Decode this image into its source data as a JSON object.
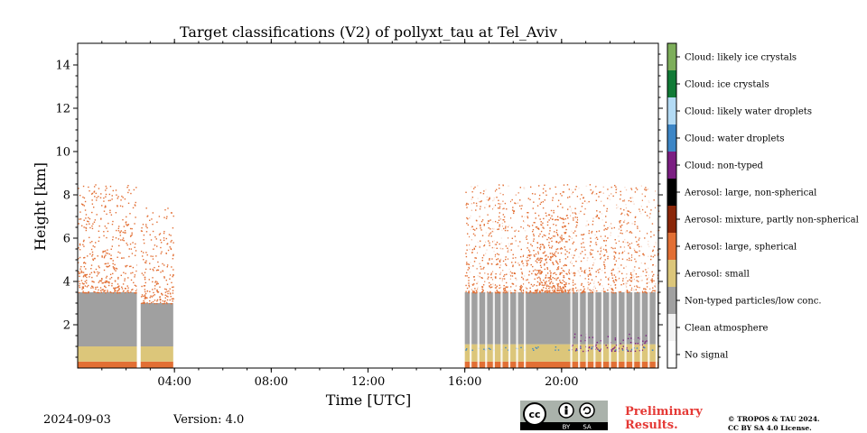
{
  "chart_data": {
    "type": "heatmap",
    "title": "Target classifications (V2) of pollyxt_tau at Tel_Aviv",
    "xlabel": "Time [UTC]",
    "ylabel": "Height [km]",
    "xlim_hours": [
      0,
      24
    ],
    "ylim_km": [
      0,
      15
    ],
    "x_ticks": [
      {
        "value": 4,
        "label": "04:00"
      },
      {
        "value": 8,
        "label": "08:00"
      },
      {
        "value": 12,
        "label": "12:00"
      },
      {
        "value": 16,
        "label": "16:00"
      },
      {
        "value": 20,
        "label": "20:00"
      }
    ],
    "y_ticks": [
      {
        "value": 2,
        "label": "2"
      },
      {
        "value": 4,
        "label": "4"
      },
      {
        "value": 6,
        "label": "6"
      },
      {
        "value": 8,
        "label": "8"
      },
      {
        "value": 10,
        "label": "10"
      },
      {
        "value": 12,
        "label": "12"
      },
      {
        "value": 14,
        "label": "14"
      }
    ],
    "classes": [
      {
        "id": 0,
        "name": "No signal",
        "color": "#ffffff"
      },
      {
        "id": 1,
        "name": "Clean atmosphere",
        "color": "#f2f2f2"
      },
      {
        "id": 2,
        "name": "Non-typed particles/low conc.",
        "color": "#a0a0a0"
      },
      {
        "id": 3,
        "name": "Aerosol: small",
        "color": "#dcc67a"
      },
      {
        "id": 4,
        "name": "Aerosol: large, spherical",
        "color": "#e26f34"
      },
      {
        "id": 5,
        "name": "Aerosol: mixture, partly non-spherical",
        "color": "#8a2608"
      },
      {
        "id": 6,
        "name": "Aerosol: large, non-spherical",
        "color": "#000000"
      },
      {
        "id": 7,
        "name": "Cloud: non-typed",
        "color": "#7b1e82"
      },
      {
        "id": 8,
        "name": "Cloud: water droplets",
        "color": "#3d86c6"
      },
      {
        "id": 9,
        "name": "Cloud: likely water droplets",
        "color": "#b3dbf5"
      },
      {
        "id": 10,
        "name": "Cloud: ice crystals",
        "color": "#117a36"
      },
      {
        "id": 11,
        "name": "Cloud: likely ice crystals",
        "color": "#7dae5a"
      }
    ],
    "segments": [
      {
        "t_start": 0.0,
        "t_end": 2.45,
        "class": 4,
        "h_bottom": 0.0,
        "h_top": 0.3
      },
      {
        "t_start": 0.0,
        "t_end": 2.45,
        "class": 3,
        "h_bottom": 0.3,
        "h_top": 1.0
      },
      {
        "t_start": 0.0,
        "t_end": 2.45,
        "class": 2,
        "h_bottom": 1.0,
        "h_top": 3.5
      },
      {
        "t_start": 0.0,
        "t_end": 2.45,
        "class": 4,
        "h_bottom": 3.5,
        "h_top": 8.5,
        "sparse": true
      },
      {
        "t_start": 2.6,
        "t_end": 3.95,
        "class": 4,
        "h_bottom": 0.0,
        "h_top": 0.3
      },
      {
        "t_start": 2.6,
        "t_end": 3.95,
        "class": 3,
        "h_bottom": 0.3,
        "h_top": 1.0
      },
      {
        "t_start": 2.6,
        "t_end": 3.95,
        "class": 2,
        "h_bottom": 1.0,
        "h_top": 3.0
      },
      {
        "t_start": 2.6,
        "t_end": 3.95,
        "class": 4,
        "h_bottom": 3.0,
        "h_top": 7.5,
        "sparse": true
      },
      {
        "t_start": 16.0,
        "t_end": 24.0,
        "class": 4,
        "h_bottom": 0.0,
        "h_top": 0.3
      },
      {
        "t_start": 16.0,
        "t_end": 24.0,
        "class": 3,
        "h_bottom": 0.3,
        "h_top": 1.1
      },
      {
        "t_start": 16.0,
        "t_end": 24.0,
        "class": 2,
        "h_bottom": 1.1,
        "h_top": 3.5
      },
      {
        "t_start": 16.0,
        "t_end": 24.0,
        "class": 4,
        "h_bottom": 3.5,
        "h_top": 8.5,
        "sparse": true
      },
      {
        "t_start": 18.8,
        "t_end": 20.2,
        "class": 4,
        "h_bottom": 3.5,
        "h_top": 7.0,
        "sparse": true
      },
      {
        "t_start": 20.3,
        "t_end": 23.5,
        "class": 7,
        "h_bottom": 0.8,
        "h_top": 1.6,
        "sparse": true
      },
      {
        "t_start": 16.0,
        "t_end": 24.0,
        "class": 8,
        "h_bottom": 0.85,
        "h_top": 1.0,
        "sparse": true
      }
    ]
  },
  "footer": {
    "date": "2024-09-03",
    "version": "Version: 4.0",
    "prelim_line1": "Preliminary",
    "prelim_line2": "Results.",
    "copyright_line1": "© TROPOS & TAU 2024.",
    "copyright_line2": "CC BY SA 4.0 License."
  },
  "license_badge": {
    "main": "cc",
    "left": "BY",
    "right": "SA"
  }
}
